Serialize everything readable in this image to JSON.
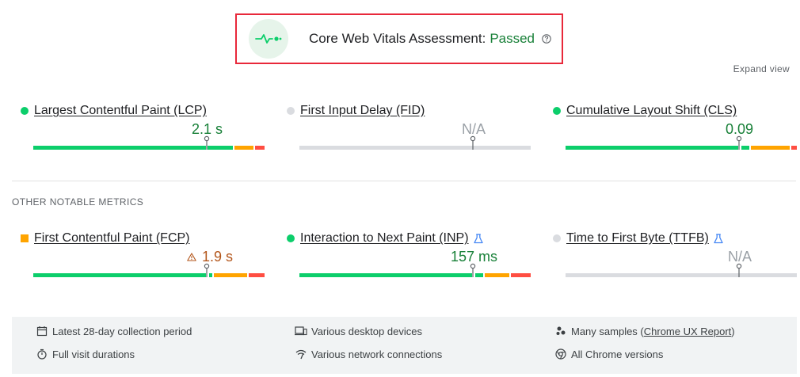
{
  "assessment": {
    "title": "Core Web Vitals Assessment:",
    "status": "Passed",
    "status_color": "#188038",
    "icon": "vitals-pulse-icon"
  },
  "expand_view_label": "Expand view",
  "core_metrics": [
    {
      "name": "Largest Contentful Paint (LCP)",
      "value": "2.1 s",
      "status": "good",
      "percentile_fraction": 0.75,
      "distribution": {
        "good": 0.86,
        "needs_improvement": 0.09,
        "poor": 0.05
      }
    },
    {
      "name": "First Input Delay (FID)",
      "value": "N/A",
      "status": "na",
      "percentile_fraction": 0.75
    },
    {
      "name": "Cumulative Layout Shift (CLS)",
      "value": "0.09",
      "status": "good",
      "percentile_fraction": 0.75,
      "distribution": {
        "good": 0.8,
        "needs_improvement": 0.18,
        "poor": 0.02
      }
    }
  ],
  "other_metrics_label": "OTHER NOTABLE METRICS",
  "other_metrics": [
    {
      "name": "First Contentful Paint (FCP)",
      "value": "1.9 s",
      "status": "average",
      "experimental": false,
      "percentile_fraction": 0.75,
      "distribution": {
        "good": 0.77,
        "needs_improvement": 0.16,
        "poor": 0.07
      }
    },
    {
      "name": "Interaction to Next Paint (INP)",
      "value": "157 ms",
      "status": "good",
      "experimental": true,
      "percentile_fraction": 0.75,
      "distribution": {
        "good": 0.82,
        "needs_improvement": 0.11,
        "poor": 0.07
      }
    },
    {
      "name": "Time to First Byte (TTFB)",
      "value": "N/A",
      "status": "na",
      "experimental": true,
      "percentile_fraction": 0.75
    }
  ],
  "footer": {
    "collection_period": "Latest 28-day collection period",
    "visit_durations": "Full visit durations",
    "devices": "Various desktop devices",
    "network": "Various network connections",
    "samples_prefix": "Many samples (",
    "samples_link": "Chrome UX Report",
    "samples_suffix": ")",
    "chrome_versions": "All Chrome versions"
  },
  "colors": {
    "good": "#0cce6b",
    "needs_improvement": "#ffa400",
    "poor": "#ff4e42",
    "highlight_border": "#e8283a"
  }
}
